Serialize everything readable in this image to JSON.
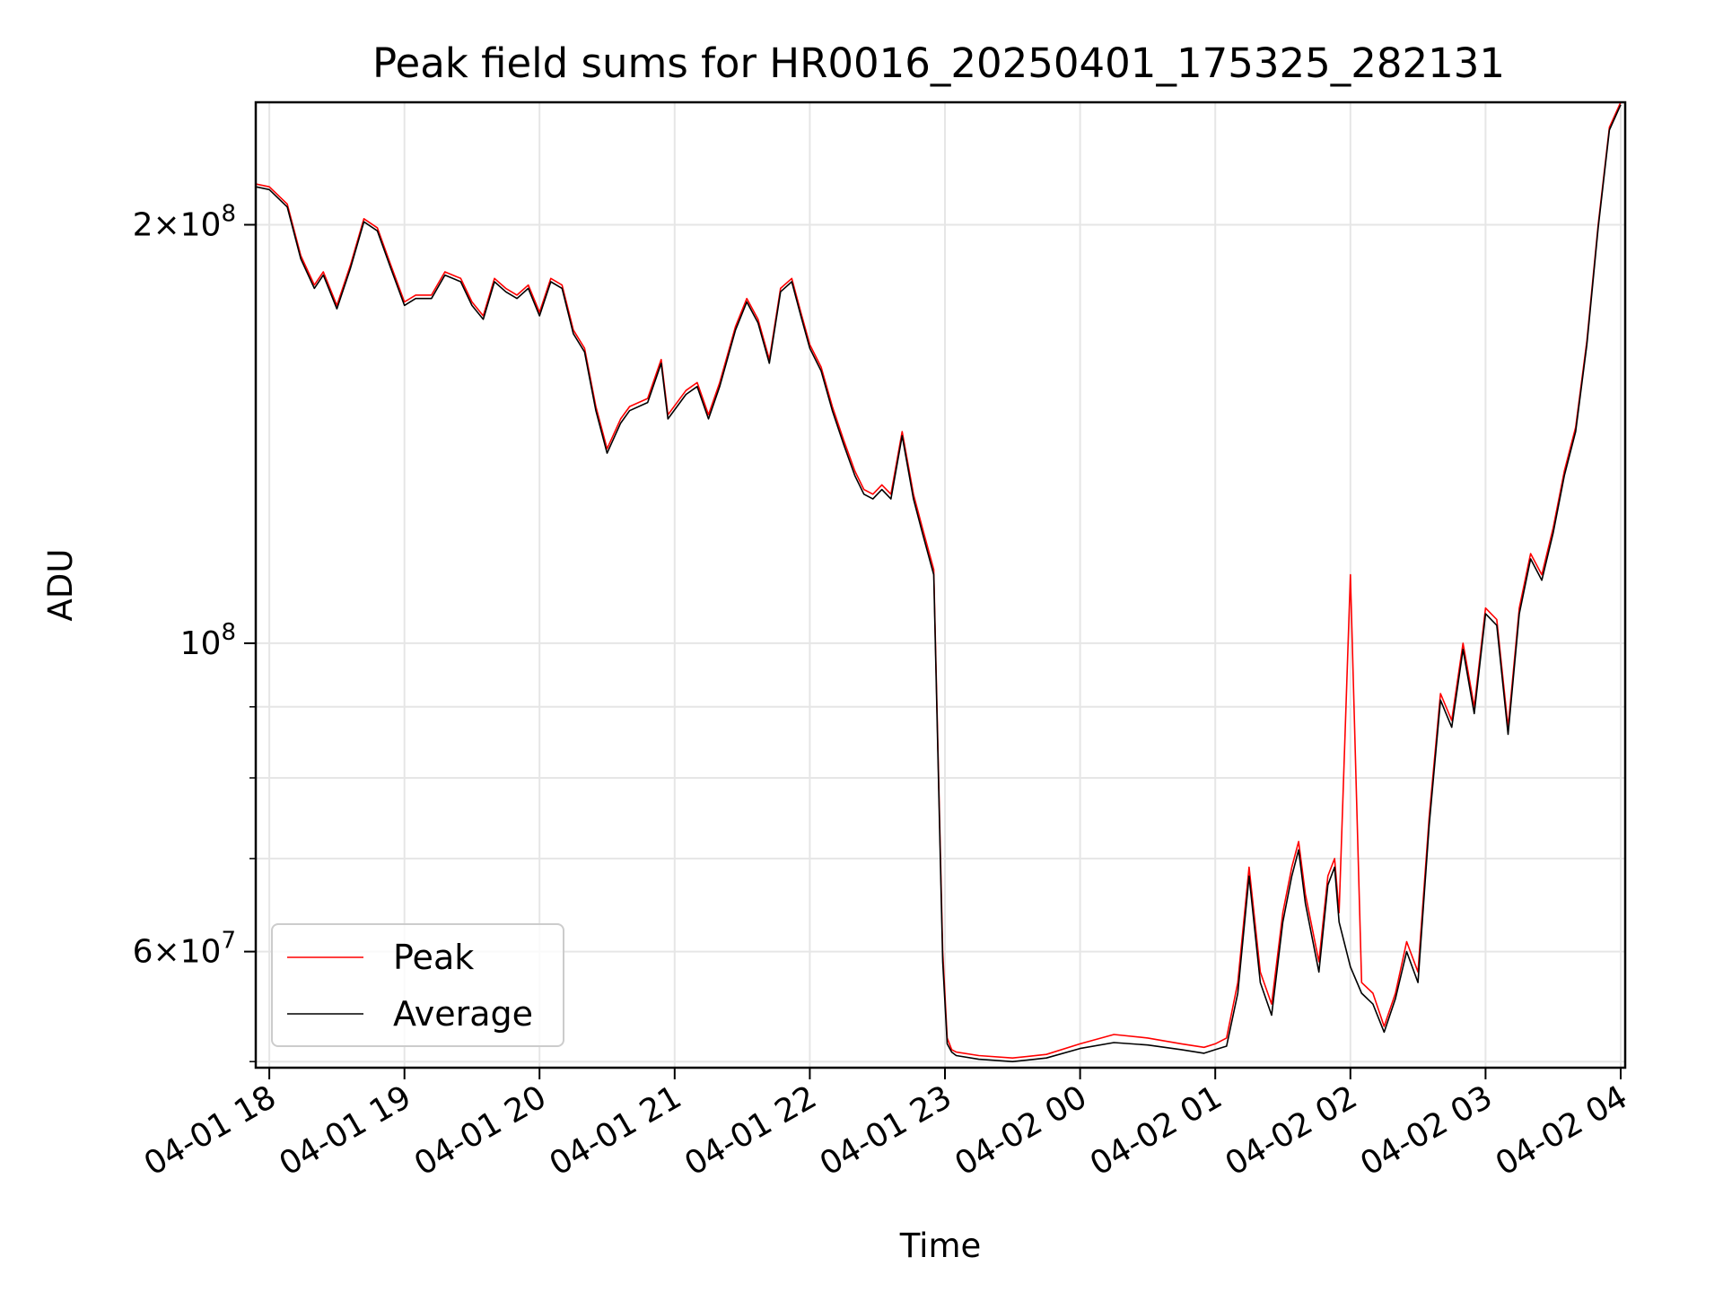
{
  "chart_data": {
    "type": "line",
    "title": "Peak field sums for HR0016_20250401_175325_282131",
    "xlabel": "Time",
    "ylabel": "ADU",
    "yscale": "log",
    "grid": true,
    "legend_position": "lower-left",
    "xlim": [
      "2025-04-01 17:54",
      "2025-04-02 04:02"
    ],
    "ylim": [
      49500000,
      245000000
    ],
    "x_ticks": [
      {
        "value": "2025-04-01 18:00",
        "label": "04-01 18"
      },
      {
        "value": "2025-04-01 19:00",
        "label": "04-01 19"
      },
      {
        "value": "2025-04-01 20:00",
        "label": "04-01 20"
      },
      {
        "value": "2025-04-01 21:00",
        "label": "04-01 21"
      },
      {
        "value": "2025-04-01 22:00",
        "label": "04-01 22"
      },
      {
        "value": "2025-04-01 23:00",
        "label": "04-01 23"
      },
      {
        "value": "2025-04-02 00:00",
        "label": "04-02 00"
      },
      {
        "value": "2025-04-02 01:00",
        "label": "04-02 01"
      },
      {
        "value": "2025-04-02 02:00",
        "label": "04-02 02"
      },
      {
        "value": "2025-04-02 03:00",
        "label": "04-02 03"
      },
      {
        "value": "2025-04-02 04:00",
        "label": "04-02 04"
      }
    ],
    "y_major_ticks": [
      {
        "value": 200000000,
        "mantissa": "2",
        "exponent": "8"
      },
      {
        "value": 100000000,
        "mantissa": "",
        "exponent": "8"
      },
      {
        "value": 60000000,
        "mantissa": "6",
        "exponent": "7"
      }
    ],
    "y_minor_ticks": [
      50000000,
      70000000,
      80000000,
      90000000
    ],
    "series": [
      {
        "name": "Peak",
        "color": "#ff0000",
        "x": [
          "2025-04-01 17:54",
          "2025-04-01 18:00",
          "2025-04-01 18:08",
          "2025-04-01 18:14",
          "2025-04-01 18:20",
          "2025-04-01 18:24",
          "2025-04-01 18:30",
          "2025-04-01 18:36",
          "2025-04-01 18:42",
          "2025-04-01 18:48",
          "2025-04-01 18:54",
          "2025-04-01 19:00",
          "2025-04-01 19:05",
          "2025-04-01 19:12",
          "2025-04-01 19:18",
          "2025-04-01 19:25",
          "2025-04-01 19:30",
          "2025-04-01 19:35",
          "2025-04-01 19:40",
          "2025-04-01 19:45",
          "2025-04-01 19:50",
          "2025-04-01 19:55",
          "2025-04-01 20:00",
          "2025-04-01 20:05",
          "2025-04-01 20:10",
          "2025-04-01 20:15",
          "2025-04-01 20:20",
          "2025-04-01 20:25",
          "2025-04-01 20:30",
          "2025-04-01 20:36",
          "2025-04-01 20:40",
          "2025-04-01 20:48",
          "2025-04-01 20:54",
          "2025-04-01 20:57",
          "2025-04-01 21:05",
          "2025-04-01 21:10",
          "2025-04-01 21:15",
          "2025-04-01 21:20",
          "2025-04-01 21:27",
          "2025-04-01 21:32",
          "2025-04-01 21:37",
          "2025-04-01 21:42",
          "2025-04-01 21:47",
          "2025-04-01 21:52",
          "2025-04-01 21:56",
          "2025-04-01 22:00",
          "2025-04-01 22:05",
          "2025-04-01 22:10",
          "2025-04-01 22:15",
          "2025-04-01 22:20",
          "2025-04-01 22:24",
          "2025-04-01 22:28",
          "2025-04-01 22:32",
          "2025-04-01 22:36",
          "2025-04-01 22:41",
          "2025-04-01 22:46",
          "2025-04-01 22:50",
          "2025-04-01 22:55",
          "2025-04-01 22:59",
          "2025-04-01 23:01",
          "2025-04-01 23:03",
          "2025-04-01 23:05",
          "2025-04-01 23:15",
          "2025-04-01 23:30",
          "2025-04-01 23:45",
          "2025-04-02 00:00",
          "2025-04-02 00:15",
          "2025-04-02 00:30",
          "2025-04-02 00:45",
          "2025-04-02 00:55",
          "2025-04-02 01:00",
          "2025-04-02 01:05",
          "2025-04-02 01:10",
          "2025-04-02 01:15",
          "2025-04-02 01:20",
          "2025-04-02 01:25",
          "2025-04-02 01:30",
          "2025-04-02 01:34",
          "2025-04-02 01:37",
          "2025-04-02 01:40",
          "2025-04-02 01:46",
          "2025-04-02 01:50",
          "2025-04-02 01:53",
          "2025-04-02 01:55",
          "2025-04-02 02:00",
          "2025-04-02 02:05",
          "2025-04-02 02:10",
          "2025-04-02 02:15",
          "2025-04-02 02:20",
          "2025-04-02 02:25",
          "2025-04-02 02:30",
          "2025-04-02 02:35",
          "2025-04-02 02:40",
          "2025-04-02 02:45",
          "2025-04-02 02:50",
          "2025-04-02 02:55",
          "2025-04-02 03:00",
          "2025-04-02 03:05",
          "2025-04-02 03:10",
          "2025-04-02 03:15",
          "2025-04-02 03:20",
          "2025-04-02 03:25",
          "2025-04-02 03:30",
          "2025-04-02 03:35",
          "2025-04-02 03:40",
          "2025-04-02 03:45",
          "2025-04-02 03:50",
          "2025-04-02 03:55",
          "2025-04-02 04:00"
        ],
        "y": [
          214000000,
          213000000,
          207000000,
          190000000,
          181000000,
          185000000,
          175000000,
          187000000,
          202000000,
          199000000,
          187000000,
          176000000,
          178000000,
          178000000,
          185000000,
          183000000,
          176000000,
          172000000,
          183000000,
          180000000,
          178000000,
          181000000,
          173000000,
          183000000,
          181000000,
          168000000,
          163000000,
          148000000,
          138000000,
          145000000,
          148000000,
          150000000,
          160000000,
          146000000,
          152000000,
          154000000,
          146000000,
          154000000,
          169000000,
          177000000,
          171000000,
          160000000,
          180000000,
          183000000,
          173000000,
          164000000,
          158000000,
          148000000,
          140000000,
          133000000,
          129000000,
          128000000,
          130000000,
          128000000,
          142000000,
          128000000,
          121000000,
          113000000,
          60000000,
          52000000,
          51000000,
          50800000,
          50500000,
          50300000,
          50600000,
          51500000,
          52300000,
          52000000,
          51500000,
          51200000,
          51500000,
          52000000,
          57000000,
          69000000,
          58000000,
          55000000,
          64000000,
          69000000,
          72000000,
          66000000,
          59000000,
          68000000,
          70000000,
          64000000,
          112000000,
          57000000,
          56000000,
          53000000,
          56000000,
          61000000,
          58000000,
          75000000,
          92000000,
          88000000,
          100000000,
          90000000,
          106000000,
          104000000,
          87000000,
          106000000,
          116000000,
          112000000,
          121000000,
          133000000,
          143000000,
          165000000,
          200000000,
          235000000,
          245000000
        ]
      },
      {
        "name": "Average",
        "color": "#000000",
        "x": [
          "2025-04-01 17:54",
          "2025-04-01 18:00",
          "2025-04-01 18:08",
          "2025-04-01 18:14",
          "2025-04-01 18:20",
          "2025-04-01 18:24",
          "2025-04-01 18:30",
          "2025-04-01 18:36",
          "2025-04-01 18:42",
          "2025-04-01 18:48",
          "2025-04-01 18:54",
          "2025-04-01 19:00",
          "2025-04-01 19:05",
          "2025-04-01 19:12",
          "2025-04-01 19:18",
          "2025-04-01 19:25",
          "2025-04-01 19:30",
          "2025-04-01 19:35",
          "2025-04-01 19:40",
          "2025-04-01 19:45",
          "2025-04-01 19:50",
          "2025-04-01 19:55",
          "2025-04-01 20:00",
          "2025-04-01 20:05",
          "2025-04-01 20:10",
          "2025-04-01 20:15",
          "2025-04-01 20:20",
          "2025-04-01 20:25",
          "2025-04-01 20:30",
          "2025-04-01 20:36",
          "2025-04-01 20:40",
          "2025-04-01 20:48",
          "2025-04-01 20:54",
          "2025-04-01 20:57",
          "2025-04-01 21:05",
          "2025-04-01 21:10",
          "2025-04-01 21:15",
          "2025-04-01 21:20",
          "2025-04-01 21:27",
          "2025-04-01 21:32",
          "2025-04-01 21:37",
          "2025-04-01 21:42",
          "2025-04-01 21:47",
          "2025-04-01 21:52",
          "2025-04-01 21:56",
          "2025-04-01 22:00",
          "2025-04-01 22:05",
          "2025-04-01 22:10",
          "2025-04-01 22:15",
          "2025-04-01 22:20",
          "2025-04-01 22:24",
          "2025-04-01 22:28",
          "2025-04-01 22:32",
          "2025-04-01 22:36",
          "2025-04-01 22:41",
          "2025-04-01 22:46",
          "2025-04-01 22:50",
          "2025-04-01 22:55",
          "2025-04-01 22:59",
          "2025-04-01 23:01",
          "2025-04-01 23:03",
          "2025-04-01 23:05",
          "2025-04-01 23:15",
          "2025-04-01 23:30",
          "2025-04-01 23:45",
          "2025-04-02 00:00",
          "2025-04-02 00:15",
          "2025-04-02 00:30",
          "2025-04-02 00:45",
          "2025-04-02 00:55",
          "2025-04-02 01:00",
          "2025-04-02 01:05",
          "2025-04-02 01:10",
          "2025-04-02 01:15",
          "2025-04-02 01:20",
          "2025-04-02 01:25",
          "2025-04-02 01:30",
          "2025-04-02 01:34",
          "2025-04-02 01:37",
          "2025-04-02 01:40",
          "2025-04-02 01:46",
          "2025-04-02 01:50",
          "2025-04-02 01:53",
          "2025-04-02 01:55",
          "2025-04-02 02:00",
          "2025-04-02 02:05",
          "2025-04-02 02:10",
          "2025-04-02 02:15",
          "2025-04-02 02:20",
          "2025-04-02 02:25",
          "2025-04-02 02:30",
          "2025-04-02 02:35",
          "2025-04-02 02:40",
          "2025-04-02 02:45",
          "2025-04-02 02:50",
          "2025-04-02 02:55",
          "2025-04-02 03:00",
          "2025-04-02 03:05",
          "2025-04-02 03:10",
          "2025-04-02 03:15",
          "2025-04-02 03:20",
          "2025-04-02 03:25",
          "2025-04-02 03:30",
          "2025-04-02 03:35",
          "2025-04-02 03:40",
          "2025-04-02 03:45",
          "2025-04-02 03:50",
          "2025-04-02 03:55",
          "2025-04-02 04:00"
        ],
        "y": [
          213000000,
          212000000,
          206000000,
          189000000,
          180000000,
          184000000,
          174000000,
          186000000,
          201000000,
          198000000,
          186000000,
          175000000,
          177000000,
          177000000,
          184000000,
          182000000,
          175000000,
          171000000,
          182000000,
          179000000,
          177000000,
          180000000,
          172000000,
          182000000,
          180000000,
          167000000,
          162000000,
          147000000,
          137000000,
          144000000,
          147000000,
          149000000,
          159000000,
          145000000,
          151000000,
          153000000,
          145000000,
          153000000,
          168000000,
          176000000,
          170000000,
          159000000,
          179000000,
          182000000,
          172000000,
          163000000,
          157000000,
          147000000,
          139000000,
          132000000,
          128000000,
          127000000,
          129000000,
          127000000,
          141000000,
          127000000,
          120000000,
          112000000,
          59000000,
          51500000,
          50800000,
          50500000,
          50200000,
          50000000,
          50300000,
          51100000,
          51600000,
          51400000,
          51000000,
          50700000,
          51000000,
          51300000,
          56000000,
          68000000,
          57000000,
          54000000,
          63000000,
          68000000,
          71000000,
          65000000,
          58000000,
          67000000,
          69000000,
          63000000,
          58500000,
          56000000,
          55000000,
          52500000,
          55500000,
          60000000,
          57000000,
          74000000,
          91000000,
          87000000,
          99000000,
          89000000,
          105000000,
          103000000,
          86000000,
          105000000,
          115000000,
          111000000,
          120000000,
          132000000,
          142000000,
          164000000,
          199000000,
          234000000,
          244000000
        ]
      }
    ]
  }
}
